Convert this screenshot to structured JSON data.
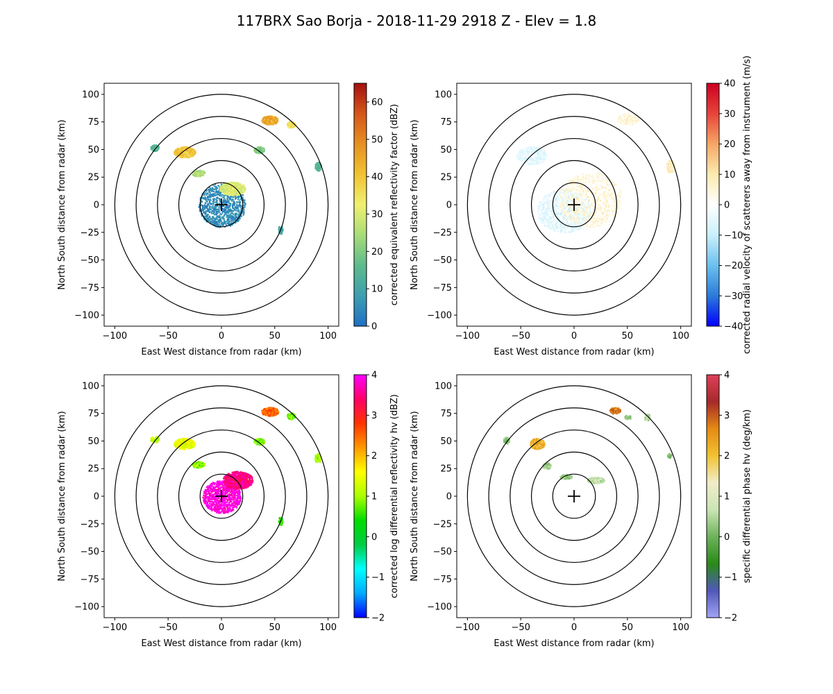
{
  "figure": {
    "title": "117BRX Sao Borja - 2018-11-29 2918 Z -  Elev = 1.8"
  },
  "chart_data": [
    {
      "type": "heatmap",
      "title": "",
      "xlabel": "East West distance from radar (km)",
      "ylabel": "North South distance from radar (km)",
      "xlim": [
        -110,
        110
      ],
      "ylim": [
        -110,
        110
      ],
      "xticks": [
        -100,
        -50,
        0,
        50,
        100
      ],
      "yticks": [
        -100,
        -75,
        -50,
        -25,
        0,
        25,
        50,
        75,
        100
      ],
      "range_rings_km": [
        20,
        40,
        60,
        80,
        100
      ],
      "colorbar": {
        "label": "corrected equivalent reflectivity factor (dBZ)",
        "range": [
          0,
          65
        ],
        "ticks": [
          0,
          10,
          20,
          30,
          40,
          50,
          60
        ],
        "colors": [
          "#1f6fc4",
          "#3d9fb0",
          "#5dbb8c",
          "#a8dc78",
          "#f0f070",
          "#f1c232",
          "#e69122",
          "#d5551a",
          "#a50f0f"
        ]
      },
      "echoes": [
        {
          "x": 0,
          "y": 0,
          "rx": 22,
          "ry": 20,
          "value": 5
        },
        {
          "x": 10,
          "y": 15,
          "rx": 12,
          "ry": 6,
          "value": 30
        },
        {
          "x": -35,
          "y": 48,
          "rx": 10,
          "ry": 5,
          "value": 40
        },
        {
          "x": 45,
          "y": 77,
          "rx": 8,
          "ry": 4,
          "value": 45
        },
        {
          "x": 65,
          "y": 73,
          "rx": 4,
          "ry": 3,
          "value": 35
        },
        {
          "x": -63,
          "y": 52,
          "rx": 4,
          "ry": 3,
          "value": 15
        },
        {
          "x": 35,
          "y": 50,
          "rx": 5,
          "ry": 3,
          "value": 20
        },
        {
          "x": 90,
          "y": 35,
          "rx": 3,
          "ry": 4,
          "value": 15
        },
        {
          "x": -22,
          "y": 29,
          "rx": 6,
          "ry": 3,
          "value": 25
        },
        {
          "x": 55,
          "y": -22,
          "rx": 2,
          "ry": 4,
          "value": 10
        }
      ]
    },
    {
      "type": "heatmap",
      "title": "",
      "xlabel": "East West distance from radar (km)",
      "ylabel": "North South distance from radar (km)",
      "xlim": [
        -110,
        110
      ],
      "ylim": [
        -110,
        110
      ],
      "xticks": [
        -100,
        -50,
        0,
        50,
        100
      ],
      "yticks": [
        -100,
        -75,
        -50,
        -25,
        0,
        25,
        50,
        75,
        100
      ],
      "range_rings_km": [
        20,
        40,
        60,
        80,
        100
      ],
      "colorbar": {
        "label": "corrected radial velocity of scatterers away from instrument (m/s)",
        "range": [
          -40,
          40
        ],
        "ticks": [
          -40,
          -30,
          -20,
          -10,
          0,
          10,
          20,
          30,
          40
        ],
        "colors": [
          "#0000ff",
          "#2b7bd9",
          "#6cc0ef",
          "#c9f0fb",
          "#ffffff",
          "#fdeab0",
          "#f5a766",
          "#e8433a",
          "#cc0022"
        ]
      },
      "echoes": [
        {
          "x": -10,
          "y": -5,
          "rx": 25,
          "ry": 20,
          "value": -6
        },
        {
          "x": 15,
          "y": 5,
          "rx": 30,
          "ry": 25,
          "value": 5
        },
        {
          "x": -40,
          "y": 45,
          "rx": 14,
          "ry": 8,
          "value": -5
        },
        {
          "x": 50,
          "y": 78,
          "rx": 10,
          "ry": 5,
          "value": 4
        },
        {
          "x": 90,
          "y": 35,
          "rx": 4,
          "ry": 6,
          "value": 8
        }
      ]
    },
    {
      "type": "heatmap",
      "title": "",
      "xlabel": "East West distance from radar (km)",
      "ylabel": "North South distance from radar (km)",
      "xlim": [
        -110,
        110
      ],
      "ylim": [
        -110,
        110
      ],
      "xticks": [
        -100,
        -50,
        0,
        50,
        100
      ],
      "yticks": [
        -100,
        -75,
        -50,
        -25,
        0,
        25,
        50,
        75,
        100
      ],
      "range_rings_km": [
        20,
        40,
        60,
        80,
        100
      ],
      "colorbar": {
        "label": "corrected log differential reflectivity hv (dBZ)",
        "range": [
          -2,
          4
        ],
        "ticks": [
          -2,
          -1,
          0,
          1,
          2,
          3,
          4
        ],
        "colors": [
          "#0000ff",
          "#00aaff",
          "#00ffff",
          "#00cc44",
          "#00dd00",
          "#aaff00",
          "#ffff00",
          "#ff9900",
          "#ff3300",
          "#ff0066",
          "#ff00ff"
        ]
      },
      "echoes": [
        {
          "x": 0,
          "y": 0,
          "rx": 18,
          "ry": 15,
          "value": 3.9
        },
        {
          "x": 15,
          "y": 15,
          "rx": 14,
          "ry": 8,
          "value": 3.5
        },
        {
          "x": -35,
          "y": 48,
          "rx": 10,
          "ry": 5,
          "value": 1.5
        },
        {
          "x": 45,
          "y": 77,
          "rx": 8,
          "ry": 4,
          "value": 2.5
        },
        {
          "x": 65,
          "y": 73,
          "rx": 4,
          "ry": 3,
          "value": 0.8
        },
        {
          "x": -63,
          "y": 52,
          "rx": 4,
          "ry": 3,
          "value": 1.2
        },
        {
          "x": 35,
          "y": 50,
          "rx": 5,
          "ry": 3,
          "value": 0.8
        },
        {
          "x": 90,
          "y": 35,
          "rx": 3,
          "ry": 4,
          "value": 1.0
        },
        {
          "x": -22,
          "y": 29,
          "rx": 6,
          "ry": 3,
          "value": 0.9
        },
        {
          "x": 55,
          "y": -22,
          "rx": 2,
          "ry": 4,
          "value": 0.5
        }
      ]
    },
    {
      "type": "heatmap",
      "title": "",
      "xlabel": "East West distance from radar (km)",
      "ylabel": "North South distance from radar (km)",
      "xlim": [
        -110,
        110
      ],
      "ylim": [
        -110,
        110
      ],
      "xticks": [
        -100,
        -50,
        0,
        50,
        100
      ],
      "yticks": [
        -100,
        -75,
        -50,
        -25,
        0,
        25,
        50,
        75,
        100
      ],
      "range_rings_km": [
        20,
        40,
        60,
        80,
        100
      ],
      "colorbar": {
        "label": "specific differential phase hv (deg/km)",
        "range": [
          -2,
          4
        ],
        "ticks": [
          -2,
          -1,
          0,
          1,
          2,
          3,
          4
        ],
        "colors": [
          "#a3a3f5",
          "#5058b8",
          "#2a8a18",
          "#6db35c",
          "#cbe4b4",
          "#f1edc9",
          "#f1c232",
          "#e58a13",
          "#a52a2a",
          "#e0405a"
        ]
      },
      "echoes": [
        {
          "x": -35,
          "y": 48,
          "rx": 7,
          "ry": 5,
          "value": 2.2
        },
        {
          "x": 38,
          "y": 78,
          "rx": 5,
          "ry": 3,
          "value": 2.8
        },
        {
          "x": 50,
          "y": 72,
          "rx": 3,
          "ry": 2,
          "value": 0.3
        },
        {
          "x": 68,
          "y": 72,
          "rx": 3,
          "ry": 3,
          "value": 0.5
        },
        {
          "x": -64,
          "y": 51,
          "rx": 3,
          "ry": 3,
          "value": 0.2
        },
        {
          "x": -26,
          "y": 28,
          "rx": 4,
          "ry": 3,
          "value": 0.4
        },
        {
          "x": -8,
          "y": 18,
          "rx": 6,
          "ry": 2,
          "value": 0.3
        },
        {
          "x": 20,
          "y": 15,
          "rx": 8,
          "ry": 3,
          "value": 0.6
        },
        {
          "x": 89,
          "y": 37,
          "rx": 2,
          "ry": 2,
          "value": 0.1
        }
      ]
    }
  ]
}
